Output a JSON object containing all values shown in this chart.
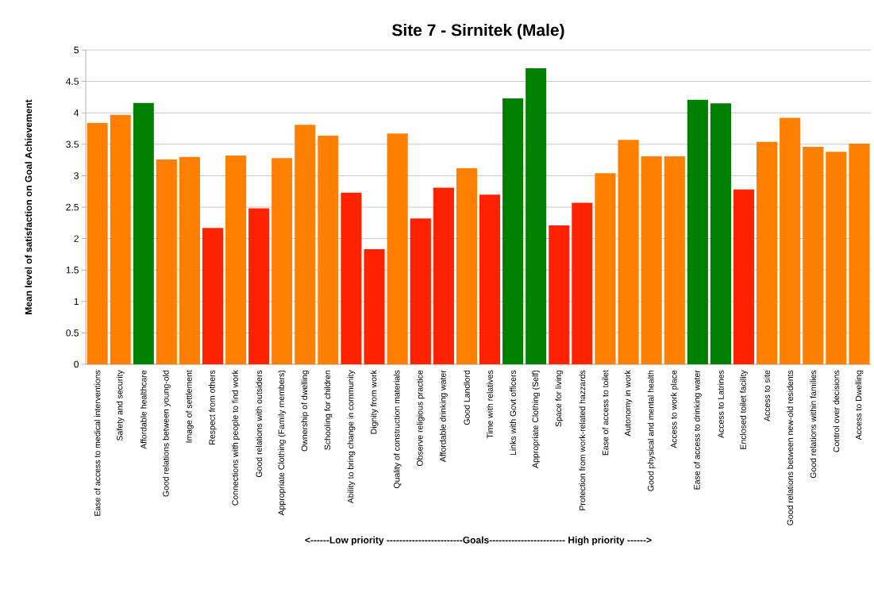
{
  "chart_data": {
    "type": "bar",
    "title": "Site 7 - Sirnitek (Male)",
    "xlabel": "<------Low priority ------------------------Goals------------------------ High priority ------>",
    "ylabel": "Mean level of satisfaction on Goal Achievement",
    "categories": [
      "Ease of access to medical interventions",
      "Safety and security",
      "Affordable healthcare",
      "Good relations between young-old",
      "Image of settlement",
      "Respect from others",
      "Connections with people to find work",
      "Good relations with outsiders",
      "Appropriate Clothing (Family members)",
      "Ownership of dwelling",
      "Schooling for children",
      "Ability to bring change in community",
      "Dignity from work",
      "Quality of construction materials",
      "Observe religious practice",
      "Affordable drinking water",
      "Good Landlord",
      "Time with relatives",
      "Links with Govt officers",
      "Appropriate Clothing (Self)",
      "Space for living",
      "Protection from work-related hazzards",
      "Ease of access to toilet",
      "Autonomy in work",
      "Good physical and mental health",
      "Access to work place",
      "Ease of access to drinking water",
      "Access to Latrines",
      "Enclosed toilet facility",
      "Access to site",
      "Good relations between new-old residents",
      "Good relations within families",
      "Control over decisions",
      "Access to Dwelling"
    ],
    "values": [
      3.84,
      3.97,
      4.16,
      3.26,
      3.3,
      2.17,
      3.32,
      2.48,
      3.28,
      3.81,
      3.64,
      2.73,
      1.83,
      3.67,
      2.32,
      2.81,
      3.12,
      2.7,
      4.23,
      4.71,
      2.21,
      2.57,
      3.04,
      3.57,
      3.31,
      3.31,
      4.21,
      4.15,
      2.78,
      3.54,
      3.92,
      3.46,
      3.38,
      3.51
    ],
    "colors": [
      "#ff7f00",
      "#ff7f00",
      "#008000",
      "#ff7f00",
      "#ff7f00",
      "#ff2200",
      "#ff7f00",
      "#ff2200",
      "#ff7f00",
      "#ff7f00",
      "#ff7f00",
      "#ff2200",
      "#ff2200",
      "#ff7f00",
      "#ff2200",
      "#ff2200",
      "#ff7f00",
      "#ff2200",
      "#008000",
      "#008000",
      "#ff2200",
      "#ff2200",
      "#ff7f00",
      "#ff7f00",
      "#ff7f00",
      "#ff7f00",
      "#008000",
      "#008000",
      "#ff2200",
      "#ff7f00",
      "#ff7f00",
      "#ff7f00",
      "#ff7f00",
      "#ff7f00"
    ],
    "ylim": [
      0,
      5
    ],
    "yticks": [
      0,
      0.5,
      1,
      1.5,
      2,
      2.5,
      3,
      3.5,
      4,
      4.5,
      5
    ],
    "grid": "y"
  }
}
